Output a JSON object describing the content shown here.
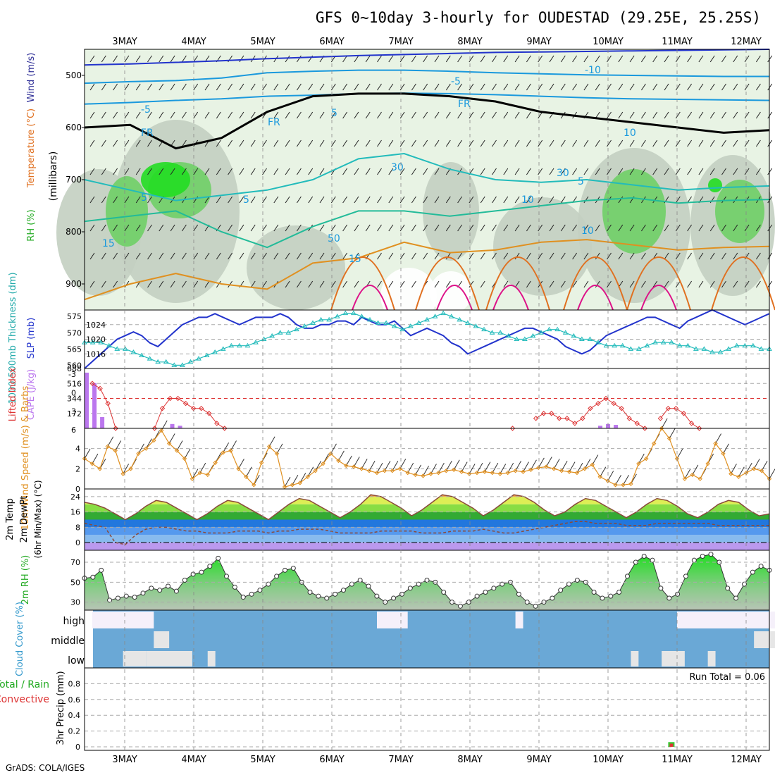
{
  "title": "GFS 0~10day 3-hourly for OUDESTAD (29.25E, 25.25S)",
  "footer": "GrADS: COLA/IGES",
  "colors": {
    "rh_light": "#e8f3e4",
    "rh_mid": "#c3cfc1",
    "rh_dark": "#a9b6a6",
    "rh_green": "#6fcf66",
    "rh_bright": "#22dd22",
    "slp": "#2233cc",
    "thick": "#22bbbb",
    "li": "#dd3333",
    "cape": "#bb77ee",
    "wind10": "#e09020",
    "barb": "#333333",
    "dew": "#8a4a3a",
    "cloud": "#6aa8d6",
    "cloud_gap": "#e6e6e6",
    "precip_total": "#33cc33",
    "precip_conv": "#dd3333"
  },
  "chart_data": {
    "type": "meteogram",
    "x_ticks": [
      "3MAY",
      "4MAY",
      "5MAY",
      "6MAY",
      "7MAY",
      "8MAY",
      "9MAY",
      "10MAY",
      "11MAY",
      "12MAY"
    ],
    "panels": [
      {
        "id": "upper_air",
        "ylabel_parts": [
          "RH (%)",
          "Temperature (°C)",
          "Wind (m/s)"
        ],
        "ylabel_right": "(millibars)",
        "y_ticks": [
          "500",
          "600",
          "700",
          "800",
          "900"
        ],
        "ylim": [
          950,
          450
        ],
        "contour_labels": [
          "-10",
          "-5",
          "-5",
          "FR",
          "FR",
          "FR",
          "5",
          "5",
          "5",
          "10",
          "10",
          "15",
          "15",
          "5",
          "10",
          "30",
          "30",
          "50"
        ],
        "isotherms": [
          {
            "label": "-10",
            "p": [
              480,
              478,
              475,
              472,
              468,
              465,
              462,
              460,
              458,
              456,
              455,
              454,
              453,
              452,
              451,
              450
            ]
          },
          {
            "label": "-5",
            "p": [
              515,
              512,
              510,
              505,
              495,
              492,
              490,
              490,
              492,
              495,
              497,
              499,
              500,
              501,
              502,
              502
            ]
          },
          {
            "label": "-5",
            "p": [
              555,
              552,
              548,
              545,
              540,
              538,
              535,
              534,
              535,
              537,
              540,
              543,
              545,
              546,
              547,
              548
            ]
          },
          {
            "label": "FR",
            "p": [
              600,
              595,
              640,
              620,
              570,
              540,
              535,
              535,
              540,
              550,
              570,
              580,
              590,
              600,
              610,
              605
            ]
          },
          {
            "label": "5",
            "p": [
              700,
              720,
              740,
              730,
              720,
              700,
              660,
              650,
              680,
              700,
              705,
              700,
              710,
              720,
              715,
              712
            ]
          },
          {
            "label": "10",
            "p": [
              780,
              770,
              760,
              800,
              830,
              790,
              760,
              760,
              770,
              760,
              750,
              740,
              735,
              745,
              740,
              738
            ]
          },
          {
            "label": "15",
            "p": [
              930,
              900,
              880,
              900,
              910,
              860,
              850,
              820,
              840,
              835,
              820,
              815,
              825,
              835,
              830,
              828
            ]
          }
        ]
      },
      {
        "id": "slp_thickness",
        "ylabel_left": "1000-500mb Thickness (dm)",
        "ylabel_right": "SLP (mb)",
        "left_ticks": [
          "560",
          "565",
          "570",
          "575"
        ],
        "right_ticks": [
          "1016",
          "1020",
          "1024"
        ],
        "slp_mb": [
          1012,
          1014,
          1016,
          1018,
          1020,
          1021,
          1022,
          1021,
          1019,
          1018,
          1020,
          1022,
          1024,
          1025,
          1026,
          1026,
          1027,
          1026,
          1025,
          1024,
          1025,
          1026,
          1026,
          1026,
          1027,
          1026,
          1024,
          1023,
          1023,
          1024,
          1024,
          1025,
          1025,
          1024,
          1026,
          1025,
          1024,
          1024,
          1025,
          1023,
          1021,
          1022,
          1023,
          1022,
          1021,
          1019,
          1018,
          1016,
          1017,
          1018,
          1019,
          1020,
          1021,
          1022,
          1023,
          1023,
          1022,
          1021,
          1020,
          1018,
          1017,
          1016,
          1017,
          1019,
          1021,
          1022,
          1023,
          1024,
          1025,
          1026,
          1026,
          1025,
          1024,
          1023,
          1025,
          1026,
          1027,
          1028,
          1027,
          1026,
          1025,
          1024,
          1025,
          1026,
          1027
        ],
        "thickness_dm": [
          567,
          567,
          567,
          566,
          565,
          565,
          564,
          563,
          562,
          561,
          561,
          560,
          560,
          561,
          562,
          563,
          564,
          565,
          566,
          566,
          566,
          567,
          568,
          569,
          570,
          570,
          571,
          572,
          573,
          574,
          574,
          575,
          576,
          576,
          575,
          574,
          573,
          573,
          572,
          571,
          572,
          573,
          574,
          575,
          576,
          575,
          574,
          573,
          572,
          571,
          570,
          570,
          569,
          568,
          568,
          569,
          570,
          571,
          571,
          570,
          569,
          568,
          568,
          567,
          566,
          566,
          566,
          565,
          565,
          566,
          567,
          567,
          567,
          566,
          566,
          565,
          565,
          564,
          564,
          565,
          566,
          566,
          566,
          565,
          565
        ]
      },
      {
        "id": "li_cape",
        "ylabel_left": "Lifted Index",
        "ylabel_right": "CAPE (J/kg)",
        "left_ticks": [
          "-3",
          "0",
          "3",
          "6"
        ],
        "right_ticks": [
          "172",
          "344",
          "516",
          "688"
        ],
        "cape_bars": [
          {
            "i": 0,
            "v": 640
          },
          {
            "i": 1,
            "v": 520
          },
          {
            "i": 2,
            "v": 130
          },
          {
            "i": 11,
            "v": 50
          },
          {
            "i": 12,
            "v": 30
          },
          {
            "i": 66,
            "v": 30
          },
          {
            "i": 67,
            "v": 50
          },
          {
            "i": 68,
            "v": 40
          }
        ],
        "li_points": [
          {
            "i": 1,
            "v": -3
          },
          {
            "i": 2,
            "v": -2
          },
          {
            "i": 3,
            "v": 1
          },
          {
            "i": 4,
            "v": 6
          },
          {
            "i": 9,
            "v": 6
          },
          {
            "i": 10,
            "v": 2
          },
          {
            "i": 11,
            "v": 0
          },
          {
            "i": 12,
            "v": 0
          },
          {
            "i": 13,
            "v": 1
          },
          {
            "i": 14,
            "v": 2
          },
          {
            "i": 15,
            "v": 2
          },
          {
            "i": 16,
            "v": 3
          },
          {
            "i": 17,
            "v": 5
          },
          {
            "i": 18,
            "v": 6
          },
          {
            "i": 55,
            "v": 6
          },
          {
            "i": 58,
            "v": 4
          },
          {
            "i": 59,
            "v": 3
          },
          {
            "i": 60,
            "v": 3
          },
          {
            "i": 61,
            "v": 4
          },
          {
            "i": 62,
            "v": 4
          },
          {
            "i": 63,
            "v": 5
          },
          {
            "i": 64,
            "v": 4
          },
          {
            "i": 65,
            "v": 2
          },
          {
            "i": 66,
            "v": 1
          },
          {
            "i": 67,
            "v": 0
          },
          {
            "i": 68,
            "v": 1
          },
          {
            "i": 69,
            "v": 2
          },
          {
            "i": 70,
            "v": 4
          },
          {
            "i": 71,
            "v": 5
          },
          {
            "i": 72,
            "v": 6
          },
          {
            "i": 74,
            "v": 4
          },
          {
            "i": 75,
            "v": 2
          },
          {
            "i": 76,
            "v": 2
          },
          {
            "i": 77,
            "v": 3
          },
          {
            "i": 78,
            "v": 5
          },
          {
            "i": 79,
            "v": 6
          }
        ]
      },
      {
        "id": "wind10",
        "ylabel": "10m Wind Speed (m/s) & Barbs",
        "y_ticks": [
          "0",
          "2",
          "4"
        ],
        "ylim": [
          0,
          6
        ],
        "speed": [
          3.0,
          2.5,
          2.0,
          4.2,
          3.8,
          1.5,
          2.0,
          3.5,
          4.0,
          4.8,
          5.8,
          4.5,
          3.8,
          3.0,
          1.0,
          1.6,
          1.4,
          2.6,
          3.6,
          3.8,
          2.0,
          1.2,
          0.4,
          2.6,
          4.2,
          3.5,
          0.2,
          0.4,
          0.6,
          1.2,
          1.8,
          2.5,
          3.5,
          2.8,
          2.3,
          2.2,
          2.0,
          1.8,
          1.6,
          1.8,
          1.8,
          2.0,
          1.6,
          1.4,
          1.3,
          1.5,
          1.6,
          1.8,
          1.9,
          1.7,
          1.5,
          1.6,
          1.7,
          1.6,
          1.5,
          1.6,
          1.8,
          1.7,
          1.9,
          2.1,
          2.2,
          2.0,
          1.8,
          1.7,
          1.6,
          2.0,
          2.4,
          1.2,
          0.8,
          0.4,
          0.4,
          0.5,
          2.5,
          3.0,
          4.5,
          6.0,
          5.0,
          3.0,
          1.0,
          1.4,
          1.0,
          2.5,
          4.5,
          3.5,
          1.5,
          1.2,
          1.6,
          2.0,
          1.8,
          1.0
        ]
      },
      {
        "id": "temp2m",
        "ylabel_parts": [
          "2m Temp",
          "2m DewPt",
          "(6hr Min/Max) (°C)"
        ],
        "y_ticks": [
          "0",
          "8",
          "16",
          "24"
        ],
        "ylim": [
          -4,
          28
        ],
        "temp": [
          21,
          20,
          18,
          15,
          12,
          15,
          19,
          22,
          21,
          18,
          15,
          12,
          15,
          19,
          22,
          21,
          18,
          15,
          12,
          16,
          20,
          23,
          22,
          19,
          16,
          13,
          16,
          20,
          25,
          24,
          21,
          18,
          14,
          17,
          21,
          25,
          24,
          21,
          18,
          14,
          17,
          21,
          25,
          24,
          21,
          17,
          14,
          16,
          20,
          23,
          22,
          19,
          16,
          13,
          16,
          20,
          23,
          22,
          19,
          15,
          13,
          16,
          20,
          22,
          21,
          17,
          14,
          15
        ],
        "dewpt": [
          10,
          9,
          8,
          0,
          -1,
          4,
          7,
          8,
          8,
          7,
          6,
          6,
          5,
          5,
          5,
          6,
          6,
          6,
          5,
          6,
          6,
          7,
          7,
          7,
          6,
          5,
          5,
          5,
          5,
          6,
          6,
          6,
          6,
          5,
          5,
          5,
          6,
          6,
          6,
          7,
          6,
          5,
          5,
          6,
          7,
          8,
          9,
          10,
          11,
          11,
          10,
          10,
          10,
          9,
          9,
          9,
          10,
          10,
          10,
          10,
          10,
          10,
          9,
          9,
          9,
          9,
          9,
          9
        ]
      },
      {
        "id": "rh2m",
        "ylabel": "2m RH (%)",
        "y_ticks": [
          "30",
          "50",
          "70"
        ],
        "ylim": [
          22,
          82
        ],
        "values": [
          54,
          55,
          62,
          32,
          34,
          36,
          35,
          39,
          44,
          42,
          46,
          41,
          52,
          58,
          60,
          66,
          74,
          56,
          45,
          35,
          38,
          42,
          48,
          56,
          62,
          64,
          50,
          40,
          36,
          34,
          38,
          42,
          48,
          52,
          46,
          36,
          30,
          34,
          38,
          44,
          48,
          52,
          50,
          40,
          30,
          26,
          30,
          36,
          40,
          44,
          48,
          50,
          38,
          30,
          26,
          30,
          34,
          42,
          48,
          52,
          50,
          40,
          34,
          36,
          40,
          56,
          70,
          76,
          72,
          44,
          34,
          38,
          56,
          72,
          76,
          78,
          70,
          44,
          34,
          48,
          60,
          66,
          62
        ]
      },
      {
        "id": "cloud",
        "ylabel": "Cloud Cover (%)",
        "levels": [
          "high",
          "middle",
          "low"
        ],
        "gaps": [
          {
            "level": "high",
            "from": 1,
            "to": 9
          },
          {
            "level": "high",
            "from": 38,
            "to": 42
          },
          {
            "level": "high",
            "from": 56,
            "to": 57
          },
          {
            "level": "high",
            "from": 77,
            "to": 90
          },
          {
            "level": "middle",
            "from": 9,
            "to": 11
          },
          {
            "level": "middle",
            "from": 87,
            "to": 90
          },
          {
            "level": "low",
            "from": 5,
            "to": 8
          },
          {
            "level": "low",
            "from": 8,
            "to": 14
          },
          {
            "level": "low",
            "from": 16,
            "to": 17
          },
          {
            "level": "low",
            "from": 71,
            "to": 72
          },
          {
            "level": "low",
            "from": 75,
            "to": 78
          },
          {
            "level": "low",
            "from": 81,
            "to": 82
          }
        ]
      },
      {
        "id": "precip",
        "ylabel_parts": [
          "Total / Rain",
          "Convective"
        ],
        "ylabel_right": "3hr Precip (mm)",
        "y_ticks": [
          "0",
          "0.2",
          "0.4",
          "0.6",
          "0.8"
        ],
        "ylim": [
          0,
          1.0
        ],
        "run_total": "Run Total = 0.06",
        "bars": [
          {
            "i": 75,
            "total": 0.06,
            "conv": 0.04
          }
        ]
      }
    ]
  }
}
